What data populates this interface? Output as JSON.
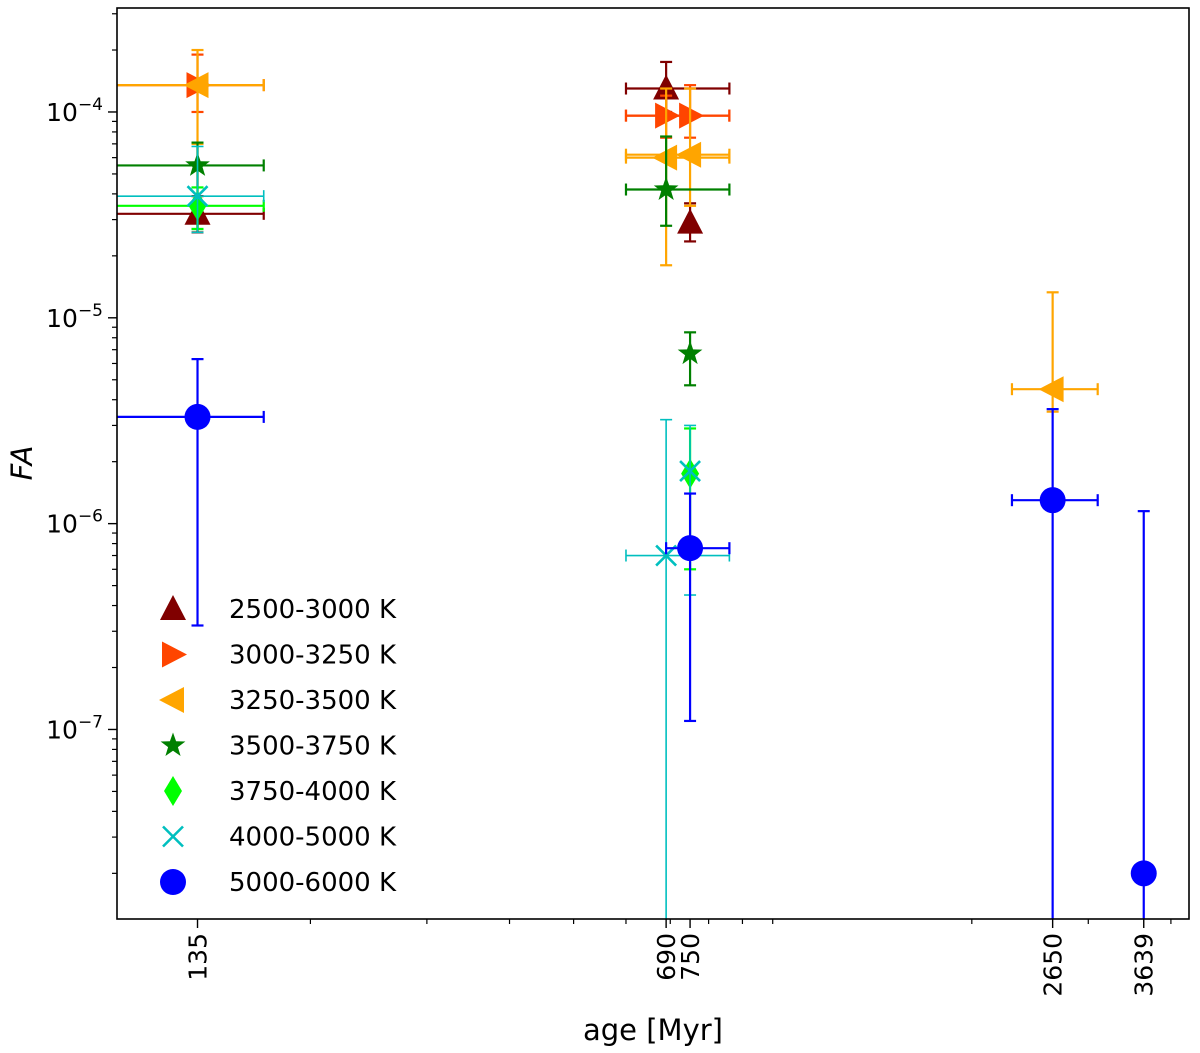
{
  "chart_data": {
    "type": "scatter",
    "xlabel": "age [Myr]",
    "ylabel": "FA",
    "x_scale": "log",
    "y_scale": "log",
    "xlim": [
      102,
      4260
    ],
    "ylim": [
      1.2e-08,
      0.00032
    ],
    "xticks": [
      {
        "value": 135,
        "label": "135"
      },
      {
        "value": 690,
        "label": "690"
      },
      {
        "value": 750,
        "label": "750"
      },
      {
        "value": 2650,
        "label": "2650"
      },
      {
        "value": 3639,
        "label": "3639"
      }
    ],
    "yticks": [
      {
        "value": 1e-07,
        "base": "10",
        "exp": "−7"
      },
      {
        "value": 1e-06,
        "base": "10",
        "exp": "−6"
      },
      {
        "value": 1e-05,
        "base": "10",
        "exp": "−5"
      },
      {
        "value": 0.0001,
        "base": "10",
        "exp": "−4"
      }
    ],
    "legend_position": "lower-left",
    "series": [
      {
        "name": "2500-3000 K",
        "color": "#800000",
        "marker": "triangle-up",
        "points": [
          {
            "x": 135,
            "y": 3.2e-05,
            "xerr": [
              100,
              170
            ],
            "yerr": [
              2.6e-05,
              3.9e-05
            ]
          },
          {
            "x": 690,
            "y": 0.00013,
            "xerr": [
              600,
              860
            ],
            "yerr": [
              0.0001,
              0.000175
            ]
          },
          {
            "x": 750,
            "y": 2.9e-05,
            "yerr": [
              2.35e-05,
              3.6e-05
            ]
          }
        ]
      },
      {
        "name": "3000-3250 K",
        "color": "#ff4500",
        "marker": "triangle-right",
        "points": [
          {
            "x": 135,
            "y": 0.000135,
            "xerr": [
              100,
              170
            ],
            "yerr": [
              0.0001,
              0.00019
            ]
          },
          {
            "x": 690,
            "y": 9.6e-05,
            "xerr": [
              600,
              860
            ],
            "yerr": [
              7.5e-05,
              0.00012
            ]
          },
          {
            "x": 750,
            "y": 9.6e-05,
            "xerr": [
              600,
              860
            ],
            "yerr": [
              7.5e-05,
              0.000135
            ]
          }
        ]
      },
      {
        "name": "3250-3500 K",
        "color": "#ffa500",
        "marker": "triangle-left",
        "points": [
          {
            "x": 135,
            "y": 0.000135,
            "xerr": [
              100,
              170
            ],
            "yerr": [
              7e-05,
              0.0002
            ]
          },
          {
            "x": 690,
            "y": 6e-05,
            "xerr": [
              600,
              860
            ],
            "yerr": [
              1.8e-05,
              0.00013
            ]
          },
          {
            "x": 750,
            "y": 6.2e-05,
            "xerr": [
              600,
              860
            ],
            "yerr": [
              3.5e-05,
              0.00013
            ]
          },
          {
            "x": 2650,
            "y": 4.5e-06,
            "xerr": [
              2300,
              3100
            ],
            "yerr": [
              3.5e-06,
              1.33e-05
            ]
          }
        ]
      },
      {
        "name": "3500-3750 K",
        "color": "#008000",
        "marker": "star",
        "points": [
          {
            "x": 135,
            "y": 5.5e-05,
            "xerr": [
              100,
              170
            ],
            "yerr": [
              2.7e-05,
              7.1e-05
            ]
          },
          {
            "x": 690,
            "y": 4.2e-05,
            "xerr": [
              600,
              860
            ],
            "yerr": [
              2.8e-05,
              7.6e-05
            ]
          },
          {
            "x": 750,
            "y": 6.7e-06,
            "yerr": [
              4.7e-06,
              8.5e-06
            ]
          }
        ]
      },
      {
        "name": "3750-4000 K",
        "color": "#00ff00",
        "marker": "diamond",
        "points": [
          {
            "x": 135,
            "y": 3.5e-05,
            "xerr": [
              100,
              170
            ],
            "yerr": [
              2.7e-05,
              4.3e-05
            ]
          },
          {
            "x": 750,
            "y": 1.75e-06,
            "yerr": [
              6e-07,
              2.9e-06
            ]
          }
        ]
      },
      {
        "name": "4000-5000 K",
        "color": "#00bfbf",
        "marker": "x",
        "points": [
          {
            "x": 135,
            "y": 3.9e-05,
            "xerr": [
              100,
              170
            ],
            "yerr": [
              2.6e-05,
              6.8e-05
            ]
          },
          {
            "x": 690,
            "y": 7e-07,
            "xerr": [
              600,
              860
            ],
            "yerr": [
              1.2e-08,
              3.2e-06
            ]
          },
          {
            "x": 750,
            "y": 1.8e-06,
            "yerr": [
              4.5e-07,
              3e-06
            ]
          }
        ]
      },
      {
        "name": "5000-6000 K",
        "color": "#0000ff",
        "marker": "circle",
        "points": [
          {
            "x": 135,
            "y": 3.3e-06,
            "xerr": [
              100,
              170
            ],
            "yerr": [
              3.2e-07,
              6.3e-06
            ]
          },
          {
            "x": 750,
            "y": 7.6e-07,
            "xerr": [
              690,
              860
            ],
            "yerr": [
              1.1e-07,
              1.4e-06
            ]
          },
          {
            "x": 2650,
            "y": 1.3e-06,
            "xerr": [
              2300,
              3100
            ],
            "yerr": [
              1.2e-08,
              3.6e-06
            ]
          },
          {
            "x": 3639,
            "y": 2e-08,
            "yerr": [
              1.2e-08,
              1.15e-06
            ]
          }
        ]
      }
    ]
  }
}
